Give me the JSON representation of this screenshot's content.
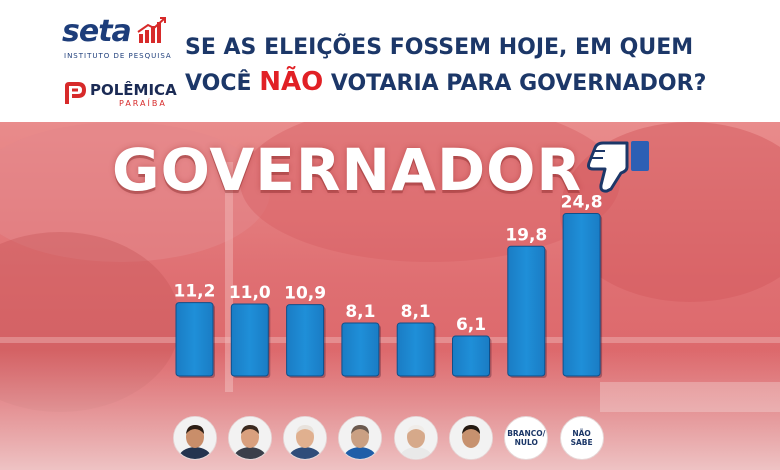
{
  "header": {
    "seta_logo": {
      "word": "seta",
      "subtitle": "INSTITUTO DE PESQUISA"
    },
    "polemica_logo": {
      "word": "POLÊMICA",
      "subtitle": "PARAÍBA"
    },
    "headline_line1": "SE AS ELEIÇÕES FOSSEM HOJE, EM QUEM",
    "headline_line2_before": "VOCÊ ",
    "headline_line2_highlight": "NÃO",
    "headline_line2_after": " VOTARIA PARA GOVERNADOR?"
  },
  "icons": {
    "seta": "rising-bars-icon",
    "polemica": "polemica-p-icon",
    "vote": "thumbs-down-icon"
  },
  "colors": {
    "bar": "#1f8fd8",
    "navy": "#1c3768",
    "highlight": "#e12025",
    "panel": "#df6f72"
  },
  "chart_data": {
    "type": "bar",
    "title": "GOVERNADOR",
    "categories": [
      "",
      "",
      "",
      "",
      "",
      "",
      "BRANCO/ NULO",
      "NÃO SABE"
    ],
    "values": [
      11.2,
      11.0,
      10.9,
      8.1,
      8.1,
      6.1,
      19.8,
      24.8
    ],
    "value_labels": [
      "11,2",
      "11,0",
      "10,9",
      "8,1",
      "8,1",
      "6,1",
      "19,8",
      "24,8"
    ],
    "xlabel": "",
    "ylabel": "",
    "ylim": [
      0,
      27
    ],
    "grid": false,
    "legend": "none"
  }
}
